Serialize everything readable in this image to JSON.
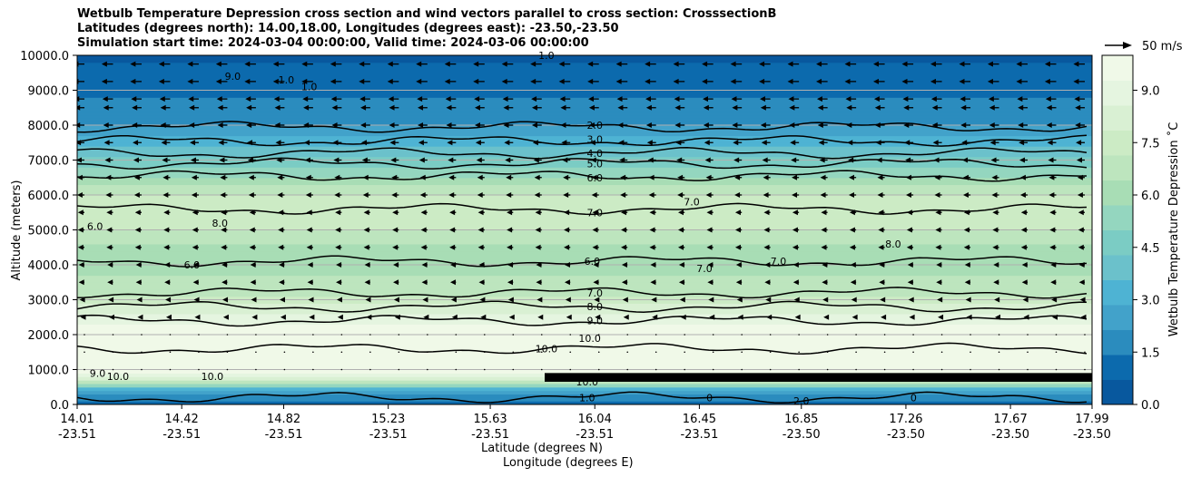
{
  "titles": {
    "line1": "Wetbulb Temperature Depression cross section and wind vectors parallel to cross section: CrosssectionB",
    "line2": "Latitudes (degrees north): 14.00,18.00, Longitudes (degrees east): -23.50,-23.50",
    "line3": "Simulation start time: 2024-03-04 00:00:00, Valid time: 2024-03-06 00:00:00"
  },
  "quiver_key": {
    "label": "50 m/s"
  },
  "colors": {
    "colormap": [
      "#08589e",
      "#0c6aad",
      "#2b8cbe",
      "#42a2ca",
      "#4eb3d3",
      "#6bc1cb",
      "#7bccc4",
      "#94d6bf",
      "#a8ddb5",
      "#bde5be",
      "#ccebc5",
      "#d9f0d3",
      "#e5f5e0",
      "#f0f9e8"
    ]
  },
  "chart_data": {
    "type": "contour",
    "title": "Wetbulb Temperature Depression cross section and wind vectors parallel to cross section: CrosssectionB",
    "xlabel_lat": "Latitude (degrees N)",
    "xlabel_lon": "Longitude (degrees E)",
    "ylabel": "Altitude (meters)",
    "ylim": [
      0,
      10000
    ],
    "xlim": [
      14.01,
      17.99
    ],
    "y_ticks": [
      "0.0",
      "1000.0",
      "2000.0",
      "3000.0",
      "4000.0",
      "5000.0",
      "6000.0",
      "7000.0",
      "8000.0",
      "9000.0",
      "10000.0"
    ],
    "y_tick_values": [
      0,
      1000,
      2000,
      3000,
      4000,
      5000,
      6000,
      7000,
      8000,
      9000,
      10000
    ],
    "x_ticks": [
      {
        "lat": "14.01",
        "lon": "-23.51",
        "value": 14.01
      },
      {
        "lat": "14.42",
        "lon": "-23.51",
        "value": 14.42
      },
      {
        "lat": "14.82",
        "lon": "-23.51",
        "value": 14.82
      },
      {
        "lat": "15.23",
        "lon": "-23.51",
        "value": 15.23
      },
      {
        "lat": "15.63",
        "lon": "-23.51",
        "value": 15.63
      },
      {
        "lat": "16.04",
        "lon": "-23.51",
        "value": 16.04
      },
      {
        "lat": "16.45",
        "lon": "-23.51",
        "value": 16.45
      },
      {
        "lat": "16.85",
        "lon": "-23.50",
        "value": 16.85
      },
      {
        "lat": "17.26",
        "lon": "-23.50",
        "value": 17.26
      },
      {
        "lat": "17.67",
        "lon": "-23.50",
        "value": 17.67
      },
      {
        "lat": "17.99",
        "lon": "-23.50",
        "value": 17.99
      }
    ],
    "colorbar": {
      "label": "Wetbulb Temperature Depression ˚C",
      "range": [
        0,
        10
      ],
      "ticks": [
        "0.0",
        "1.5",
        "3.0",
        "4.5",
        "6.0",
        "7.5",
        "9.0"
      ],
      "tick_values": [
        0,
        1.5,
        3,
        4.5,
        6,
        7.5,
        9
      ]
    },
    "grid": "horizontal",
    "contour_lines": [
      {
        "label": "1.0",
        "altitude": 200
      },
      {
        "label": "2.0",
        "altitude": 7950
      },
      {
        "label": "3.0",
        "altitude": 7550
      },
      {
        "label": "4.0",
        "altitude": 7200
      },
      {
        "label": "5.0",
        "altitude": 6900
      },
      {
        "label": "6.0",
        "altitude": 6550
      },
      {
        "label": "7.0",
        "altitude": 5600
      },
      {
        "label": "6.0",
        "altitude": 4100
      },
      {
        "label": "7.0",
        "altitude": 3200
      },
      {
        "label": "8.0",
        "altitude": 2800
      },
      {
        "label": "9.0",
        "altitude": 2400
      },
      {
        "label": "10.0",
        "altitude": 1600
      }
    ],
    "contour_labels": [
      {
        "text": "2.0",
        "lat": 16.04,
        "alt": 8000
      },
      {
        "text": "3.0",
        "lat": 16.04,
        "alt": 7600
      },
      {
        "text": "4.0",
        "lat": 16.04,
        "alt": 7200
      },
      {
        "text": "5.0",
        "lat": 16.04,
        "alt": 6900
      },
      {
        "text": "6.0",
        "lat": 16.04,
        "alt": 6500
      },
      {
        "text": "7.0",
        "lat": 16.04,
        "alt": 5500
      },
      {
        "text": "6.0",
        "lat": 16.03,
        "alt": 4100
      },
      {
        "text": "7.0",
        "lat": 16.04,
        "alt": 3200
      },
      {
        "text": "8.0",
        "lat": 16.04,
        "alt": 2800
      },
      {
        "text": "9.0",
        "lat": 16.04,
        "alt": 2400
      },
      {
        "text": "10.0",
        "lat": 15.85,
        "alt": 1600
      },
      {
        "text": "10.0",
        "lat": 16.02,
        "alt": 1900
      },
      {
        "text": "1.0",
        "lat": 16.01,
        "alt": 200
      },
      {
        "text": "10.0",
        "lat": 16.01,
        "alt": 650
      },
      {
        "text": "8.0",
        "lat": 14.57,
        "alt": 5200
      },
      {
        "text": "6.0",
        "lat": 14.46,
        "alt": 4000
      },
      {
        "text": "6.0",
        "lat": 14.08,
        "alt": 5100
      },
      {
        "text": "7.0",
        "lat": 16.42,
        "alt": 5800
      },
      {
        "text": "7.0",
        "lat": 16.76,
        "alt": 4100
      },
      {
        "text": "7.0",
        "lat": 16.47,
        "alt": 3900
      },
      {
        "text": "8.0",
        "lat": 17.21,
        "alt": 4600
      },
      {
        "text": "1.0",
        "lat": 14.83,
        "alt": 9300
      },
      {
        "text": "1.0",
        "lat": 14.92,
        "alt": 9100
      },
      {
        "text": "9.0",
        "lat": 14.62,
        "alt": 9400
      },
      {
        "text": "1.0",
        "lat": 15.85,
        "alt": 10000
      },
      {
        "text": "9.0",
        "lat": 14.09,
        "alt": 900
      },
      {
        "text": "10.0",
        "lat": 14.17,
        "alt": 800
      },
      {
        "text": "10.0",
        "lat": 14.54,
        "alt": 800
      },
      {
        "text": "0",
        "lat": 16.49,
        "alt": 200
      },
      {
        "text": "2.0",
        "lat": 16.85,
        "alt": 100
      },
      {
        "text": "0",
        "lat": 17.29,
        "alt": 200
      }
    ],
    "wind_vectors": {
      "units": "m/s",
      "reference": 50,
      "rows": [
        {
          "alt": 9750,
          "u": -14
        },
        {
          "alt": 9250,
          "u": -14
        },
        {
          "alt": 8750,
          "u": -13
        },
        {
          "alt": 8500,
          "u": -12
        },
        {
          "alt": 8000,
          "u": -12
        },
        {
          "alt": 7500,
          "u": -11
        },
        {
          "alt": 7000,
          "u": -10
        },
        {
          "alt": 6500,
          "u": -9
        },
        {
          "alt": 6000,
          "u": -9
        },
        {
          "alt": 5500,
          "u": -8
        },
        {
          "alt": 5000,
          "u": -8
        },
        {
          "alt": 4500,
          "u": -8
        },
        {
          "alt": 4000,
          "u": -7
        },
        {
          "alt": 3500,
          "u": -7
        },
        {
          "alt": 3000,
          "u": -6
        },
        {
          "alt": 2500,
          "u": -5
        },
        {
          "alt": 2000,
          "u": -3
        },
        {
          "alt": 1500,
          "u": -2
        },
        {
          "alt": 1000,
          "u": -1
        }
      ]
    }
  }
}
